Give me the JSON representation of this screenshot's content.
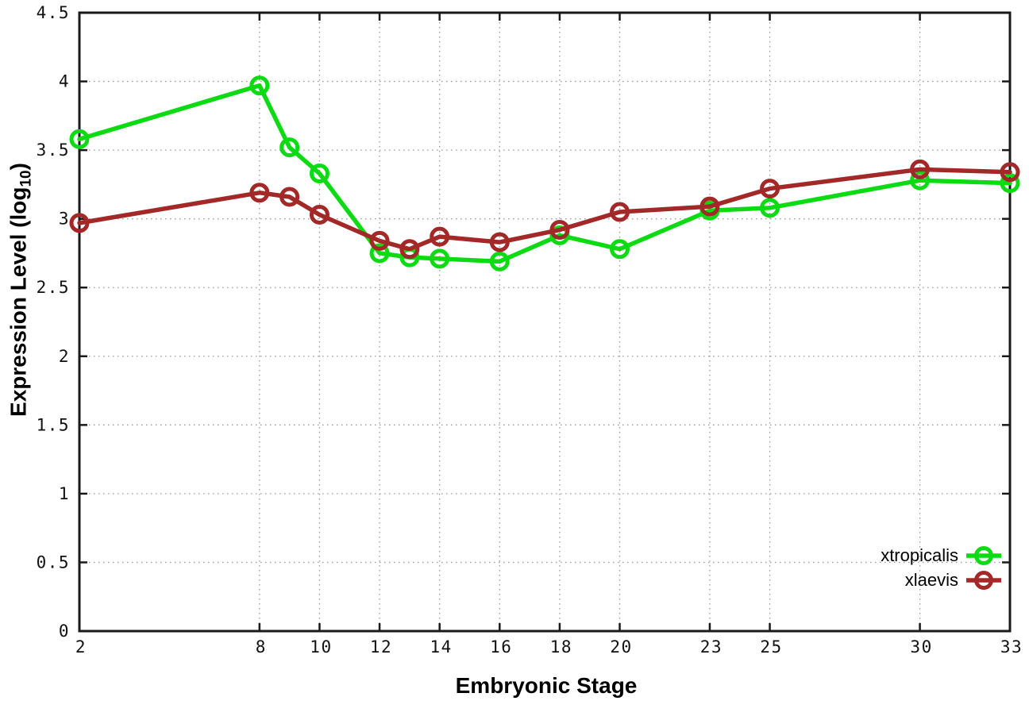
{
  "page": {
    "background": "#ffffff"
  },
  "axes": {
    "xlabel": "Embryonic Stage",
    "ylabel_main": "Expression Level (log",
    "ylabel_sub": "10",
    "ylabel_close": ")"
  },
  "legend": {
    "items": [
      {
        "label": "xtropicalis",
        "color": "#0cdb14"
      },
      {
        "label": "xlaevis",
        "color": "#a32828"
      }
    ]
  },
  "chart_data": {
    "type": "line",
    "title": "",
    "xlabel": "Embryonic Stage",
    "ylabel": "Expression Level (log10)",
    "x": [
      2,
      8,
      9,
      10,
      12,
      13,
      14,
      16,
      18,
      20,
      23,
      25,
      30,
      33
    ],
    "series": [
      {
        "name": "xtropicalis",
        "color": "#0cdb14",
        "values": [
          3.58,
          3.97,
          3.52,
          3.33,
          2.75,
          2.72,
          2.71,
          2.69,
          2.88,
          2.78,
          3.06,
          3.08,
          3.28,
          3.26
        ]
      },
      {
        "name": "xlaevis",
        "color": "#a32828",
        "values": [
          2.97,
          3.19,
          3.16,
          3.03,
          2.84,
          2.78,
          2.87,
          2.83,
          2.92,
          3.05,
          3.09,
          3.22,
          3.36,
          3.34
        ]
      }
    ],
    "xlim": [
      2,
      33
    ],
    "ylim": [
      0,
      4.5
    ],
    "x_ticks": [
      2,
      8,
      10,
      12,
      14,
      16,
      18,
      20,
      23,
      25,
      30,
      33
    ],
    "y_ticks": [
      0,
      0.5,
      1,
      1.5,
      2,
      2.5,
      3,
      3.5,
      4,
      4.5
    ],
    "grid": true,
    "grid_color": "#9a9a9a",
    "border_color": "#1a1a1a",
    "tick_label_color": "#111111",
    "legend_position": "bottom-right",
    "marker": "open-circle"
  }
}
